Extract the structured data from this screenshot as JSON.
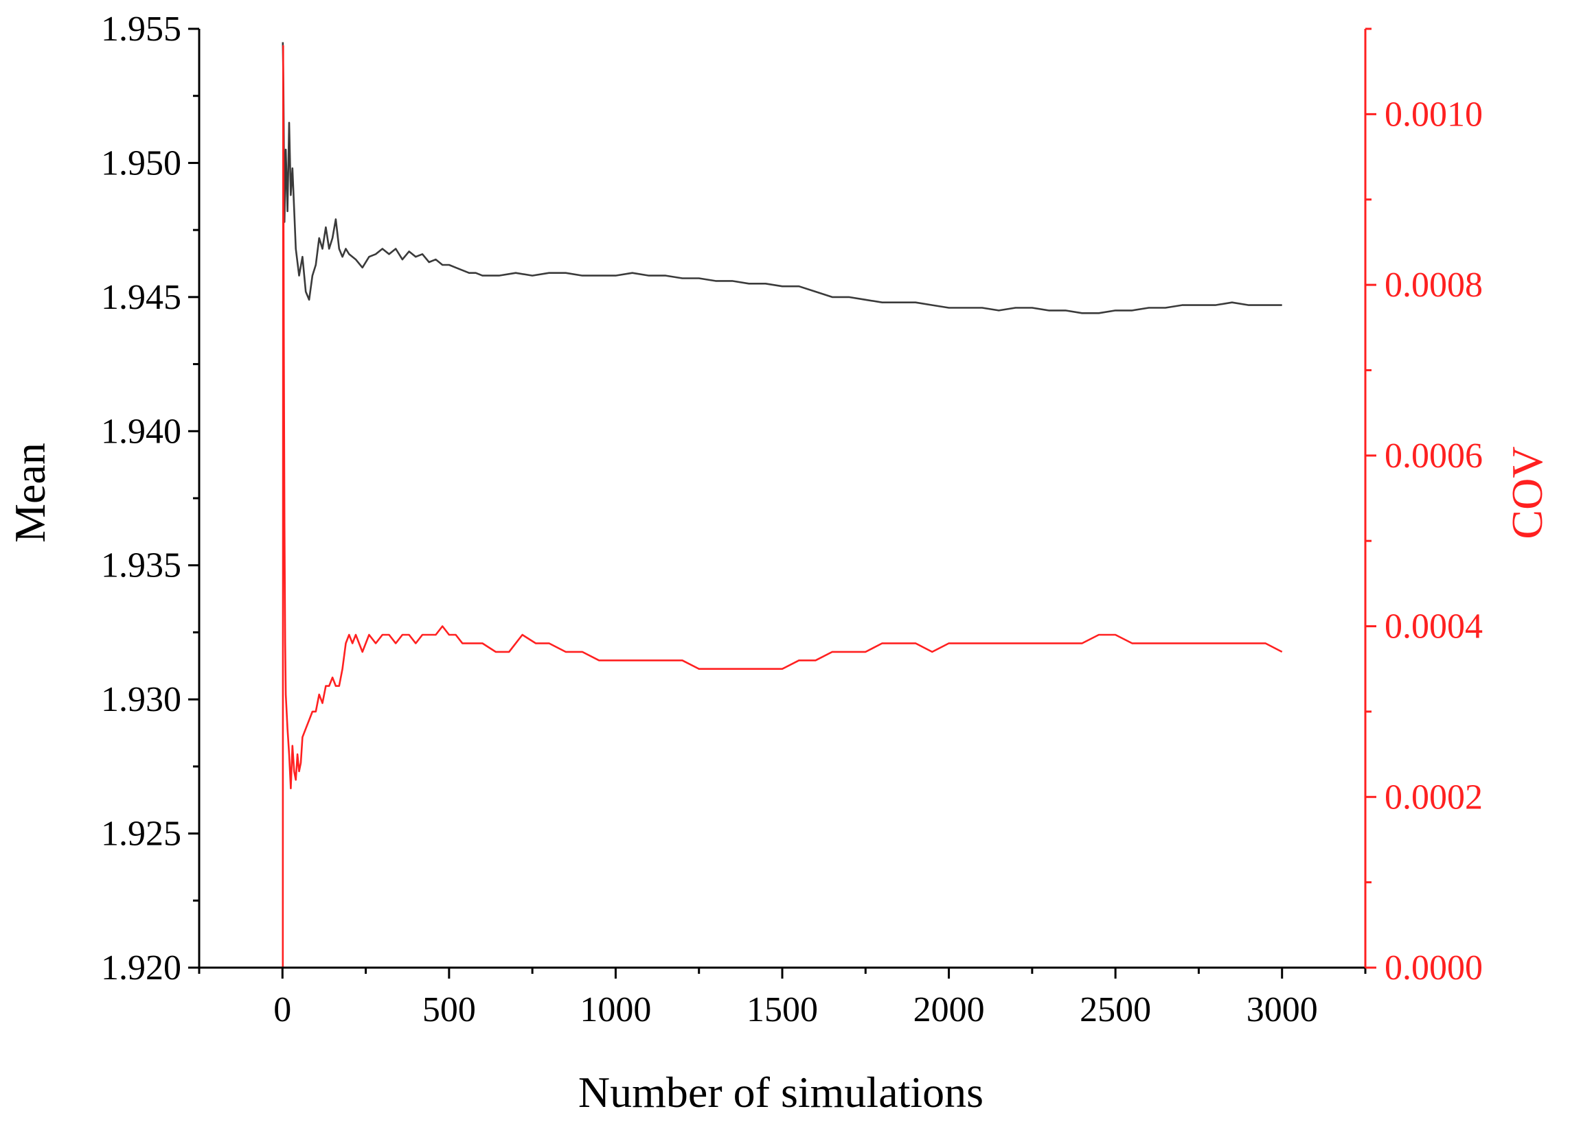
{
  "chart_data": {
    "type": "line",
    "xlabel": "Number of simulations",
    "ylabel_left": "Mean",
    "ylabel_right": "COV",
    "xlim": [
      -250,
      3250
    ],
    "xticks": [
      0,
      500,
      1000,
      1500,
      2000,
      2500,
      3000
    ],
    "xtick_labels": [
      "0",
      "500",
      "1000",
      "1500",
      "2000",
      "2500",
      "3000"
    ],
    "ylim_left": [
      1.92,
      1.955
    ],
    "yticks_left": [
      1.92,
      1.925,
      1.93,
      1.935,
      1.94,
      1.945,
      1.95,
      1.955
    ],
    "ytick_labels_left": [
      "1.920",
      "1.925",
      "1.930",
      "1.935",
      "1.940",
      "1.945",
      "1.950",
      "1.955"
    ],
    "ylim_right": [
      0,
      0.0011
    ],
    "yticks_right": [
      0,
      0.0002,
      0.0004,
      0.0006,
      0.0008,
      0.001
    ],
    "ytick_labels_right": [
      "0.0000",
      "0.0002",
      "0.0004",
      "0.0006",
      "0.0008",
      "0.0010"
    ],
    "grid": false,
    "colors": {
      "mean": "#3a3a3a",
      "cov": "#ff2020",
      "axis": "#000000",
      "right_axis": "#ff2020"
    },
    "series": [
      {
        "axis": "left",
        "x": [
          1,
          3,
          6,
          10,
          15,
          20,
          25,
          30,
          40,
          50,
          60,
          70,
          80,
          90,
          100,
          110,
          120,
          130,
          140,
          150,
          160,
          170,
          180,
          190,
          200,
          220,
          240,
          260,
          280,
          300,
          320,
          340,
          360,
          380,
          400,
          420,
          440,
          460,
          480,
          500,
          520,
          540,
          560,
          580,
          600,
          650,
          700,
          750,
          800,
          850,
          900,
          950,
          1000,
          1050,
          1100,
          1150,
          1200,
          1250,
          1300,
          1350,
          1400,
          1450,
          1500,
          1550,
          1600,
          1650,
          1700,
          1750,
          1800,
          1850,
          1900,
          1950,
          2000,
          2050,
          2100,
          2150,
          2200,
          2250,
          2300,
          2350,
          2400,
          2450,
          2500,
          2550,
          2600,
          2650,
          2700,
          2750,
          2800,
          2850,
          2900,
          2950,
          3000
        ],
        "y": [
          1.9545,
          1.9528,
          1.9478,
          1.9505,
          1.9482,
          1.9515,
          1.9488,
          1.9498,
          1.9468,
          1.9458,
          1.9465,
          1.9452,
          1.9449,
          1.9458,
          1.9462,
          1.9472,
          1.9468,
          1.9476,
          1.9468,
          1.9472,
          1.9479,
          1.9468,
          1.9465,
          1.9468,
          1.9466,
          1.9464,
          1.9461,
          1.9465,
          1.9466,
          1.9468,
          1.9466,
          1.9468,
          1.9464,
          1.9467,
          1.9465,
          1.9466,
          1.9463,
          1.9464,
          1.9462,
          1.9462,
          1.9461,
          1.946,
          1.9459,
          1.9459,
          1.9458,
          1.9458,
          1.9459,
          1.9458,
          1.9459,
          1.9459,
          1.9458,
          1.9458,
          1.9458,
          1.9459,
          1.9458,
          1.9458,
          1.9457,
          1.9457,
          1.9456,
          1.9456,
          1.9455,
          1.9455,
          1.9454,
          1.9454,
          1.9452,
          1.945,
          1.945,
          1.9449,
          1.9448,
          1.9448,
          1.9448,
          1.9447,
          1.9446,
          1.9446,
          1.9446,
          1.9445,
          1.9446,
          1.9446,
          1.9445,
          1.9445,
          1.9444,
          1.9444,
          1.9445,
          1.9445,
          1.9446,
          1.9446,
          1.9447,
          1.9447,
          1.9447,
          1.9448,
          1.9447,
          1.9447,
          1.9447
        ]
      },
      {
        "axis": "right",
        "x": [
          1,
          2,
          4,
          6,
          8,
          10,
          15,
          20,
          25,
          30,
          35,
          40,
          45,
          50,
          55,
          60,
          70,
          80,
          90,
          100,
          110,
          120,
          130,
          140,
          150,
          160,
          170,
          180,
          190,
          200,
          210,
          220,
          240,
          260,
          280,
          300,
          320,
          340,
          360,
          380,
          400,
          420,
          440,
          460,
          480,
          500,
          520,
          540,
          560,
          580,
          600,
          640,
          680,
          700,
          720,
          760,
          800,
          850,
          900,
          950,
          1000,
          1050,
          1100,
          1150,
          1200,
          1250,
          1300,
          1350,
          1400,
          1450,
          1500,
          1550,
          1600,
          1650,
          1700,
          1750,
          1800,
          1850,
          1900,
          1950,
          2000,
          2050,
          2100,
          2150,
          2200,
          2250,
          2300,
          2350,
          2400,
          2450,
          2500,
          2550,
          2600,
          2650,
          2700,
          2750,
          2800,
          2850,
          2900,
          2950,
          3000
        ],
        "y": [
          0.0,
          0.00108,
          0.00075,
          0.00052,
          0.00038,
          0.00032,
          0.00028,
          0.00025,
          0.00021,
          0.00026,
          0.00023,
          0.00022,
          0.00025,
          0.00023,
          0.00024,
          0.00027,
          0.00028,
          0.00029,
          0.0003,
          0.0003,
          0.00032,
          0.00031,
          0.00033,
          0.00033,
          0.00034,
          0.00033,
          0.00033,
          0.00035,
          0.00038,
          0.00039,
          0.00038,
          0.00039,
          0.00037,
          0.00039,
          0.00038,
          0.00039,
          0.00039,
          0.00038,
          0.00039,
          0.00039,
          0.00038,
          0.00039,
          0.00039,
          0.00039,
          0.0004,
          0.00039,
          0.00039,
          0.00038,
          0.00038,
          0.00038,
          0.00038,
          0.00037,
          0.00037,
          0.00038,
          0.00039,
          0.00038,
          0.00038,
          0.00037,
          0.00037,
          0.00036,
          0.00036,
          0.00036,
          0.00036,
          0.00036,
          0.00036,
          0.00035,
          0.00035,
          0.00035,
          0.00035,
          0.00035,
          0.00035,
          0.00036,
          0.00036,
          0.00037,
          0.00037,
          0.00037,
          0.00038,
          0.00038,
          0.00038,
          0.00037,
          0.00038,
          0.00038,
          0.00038,
          0.00038,
          0.00038,
          0.00038,
          0.00038,
          0.00038,
          0.00038,
          0.00039,
          0.00039,
          0.00038,
          0.00038,
          0.00038,
          0.00038,
          0.00038,
          0.00038,
          0.00038,
          0.00038,
          0.00038,
          0.00037
        ]
      }
    ]
  }
}
